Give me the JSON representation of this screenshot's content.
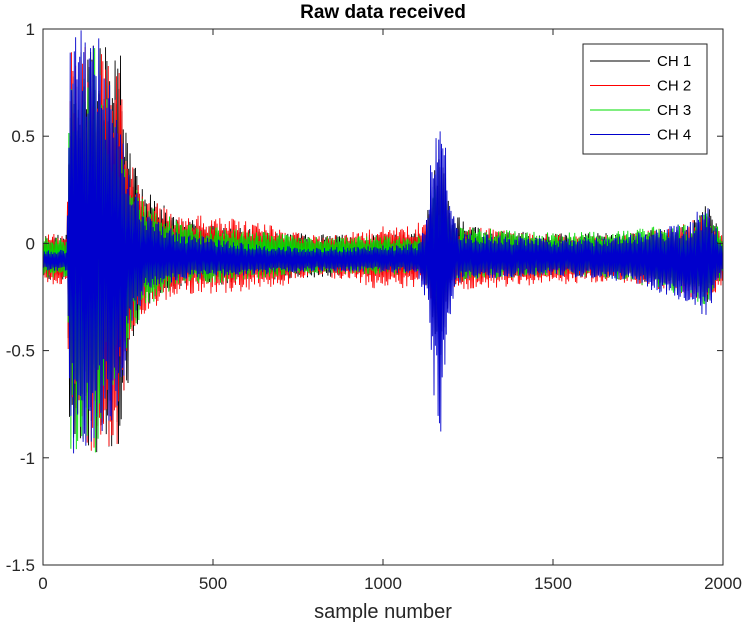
{
  "chart_data": {
    "type": "line",
    "title": "Raw data received",
    "xlabel": "sample number",
    "ylabel": "",
    "xlim": [
      0,
      2000
    ],
    "ylim": [
      -1.5,
      1
    ],
    "xticks": [
      "0",
      "500",
      "1000",
      "1500",
      "2000"
    ],
    "yticks": [
      "1",
      "0.5",
      "0",
      "-0.5",
      "-1",
      "-1.5"
    ],
    "grid": false,
    "legend_position": "top-right",
    "x_step": 2,
    "series": [
      {
        "name": "CH 1",
        "color": "#000000",
        "envelope": [
          [
            0,
            0.04,
            -0.17
          ],
          [
            70,
            0.04,
            -0.17
          ],
          [
            80,
            0.9,
            -0.98
          ],
          [
            140,
            0.93,
            -0.98
          ],
          [
            230,
            0.9,
            -0.98
          ],
          [
            260,
            0.4,
            -0.5
          ],
          [
            300,
            0.25,
            -0.3
          ],
          [
            400,
            0.12,
            -0.2
          ],
          [
            550,
            0.08,
            -0.19
          ],
          [
            700,
            0.05,
            -0.17
          ],
          [
            900,
            0.04,
            -0.15
          ],
          [
            1120,
            0.05,
            -0.15
          ],
          [
            1150,
            0.4,
            -0.45
          ],
          [
            1170,
            0.5,
            -0.55
          ],
          [
            1200,
            0.15,
            -0.2
          ],
          [
            1300,
            0.06,
            -0.16
          ],
          [
            1500,
            0.05,
            -0.16
          ],
          [
            1700,
            0.05,
            -0.17
          ],
          [
            1900,
            0.08,
            -0.22
          ],
          [
            1950,
            0.2,
            -0.3
          ],
          [
            2000,
            0.04,
            -0.15
          ]
        ]
      },
      {
        "name": "CH 2",
        "color": "#ff0000",
        "envelope": [
          [
            0,
            0.05,
            -0.2
          ],
          [
            70,
            0.05,
            -0.2
          ],
          [
            80,
            0.93,
            -0.98
          ],
          [
            150,
            0.93,
            -0.98
          ],
          [
            220,
            0.85,
            -0.95
          ],
          [
            260,
            0.4,
            -0.5
          ],
          [
            300,
            0.22,
            -0.32
          ],
          [
            400,
            0.14,
            -0.24
          ],
          [
            550,
            0.12,
            -0.23
          ],
          [
            700,
            0.08,
            -0.2
          ],
          [
            820,
            0.03,
            -0.15
          ],
          [
            1000,
            0.08,
            -0.22
          ],
          [
            1120,
            0.1,
            -0.2
          ],
          [
            1150,
            0.2,
            -0.3
          ],
          [
            1200,
            0.1,
            -0.22
          ],
          [
            1400,
            0.05,
            -0.2
          ],
          [
            1700,
            0.04,
            -0.18
          ],
          [
            1900,
            0.1,
            -0.25
          ],
          [
            1950,
            0.15,
            -0.3
          ],
          [
            2000,
            0.05,
            -0.2
          ]
        ]
      },
      {
        "name": "CH 3",
        "color": "#00dd00",
        "envelope": [
          [
            0,
            0.03,
            -0.16
          ],
          [
            70,
            0.03,
            -0.16
          ],
          [
            80,
            0.93,
            -1.0
          ],
          [
            150,
            0.93,
            -1.0
          ],
          [
            220,
            0.5,
            -0.6
          ],
          [
            260,
            0.3,
            -0.45
          ],
          [
            300,
            0.2,
            -0.3
          ],
          [
            400,
            0.1,
            -0.2
          ],
          [
            550,
            0.07,
            -0.18
          ],
          [
            800,
            0.03,
            -0.14
          ],
          [
            1120,
            0.04,
            -0.15
          ],
          [
            1150,
            0.3,
            -0.35
          ],
          [
            1200,
            0.08,
            -0.18
          ],
          [
            1500,
            0.05,
            -0.15
          ],
          [
            1700,
            0.06,
            -0.17
          ],
          [
            1900,
            0.1,
            -0.25
          ],
          [
            1950,
            0.15,
            -0.3
          ],
          [
            2000,
            0.05,
            -0.15
          ]
        ]
      },
      {
        "name": "CH 4",
        "color": "#0000cc",
        "envelope": [
          [
            0,
            -0.03,
            -0.13
          ],
          [
            70,
            -0.03,
            -0.13
          ],
          [
            80,
            1.0,
            -1.0
          ],
          [
            160,
            1.0,
            -0.95
          ],
          [
            220,
            0.7,
            -0.8
          ],
          [
            260,
            0.3,
            -0.4
          ],
          [
            300,
            0.15,
            -0.25
          ],
          [
            400,
            0.05,
            -0.17
          ],
          [
            600,
            0.0,
            -0.15
          ],
          [
            800,
            -0.02,
            -0.13
          ],
          [
            1100,
            0.0,
            -0.14
          ],
          [
            1130,
            0.15,
            -0.3
          ],
          [
            1150,
            0.6,
            -0.75
          ],
          [
            1170,
            0.7,
            -0.9
          ],
          [
            1200,
            0.2,
            -0.3
          ],
          [
            1230,
            0.05,
            -0.17
          ],
          [
            1500,
            0.02,
            -0.15
          ],
          [
            1720,
            0.04,
            -0.18
          ],
          [
            1900,
            0.1,
            -0.28
          ],
          [
            1950,
            0.2,
            -0.35
          ],
          [
            2000,
            0.0,
            -0.14
          ]
        ]
      }
    ]
  }
}
